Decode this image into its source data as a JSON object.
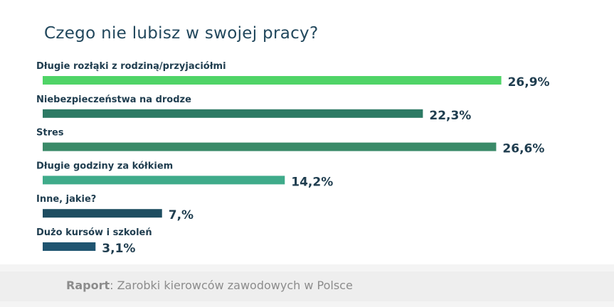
{
  "chart_data": {
    "type": "bar",
    "orientation": "horizontal",
    "title": "Czego nie lubisz w swojej pracy?",
    "categories": [
      "Długie rozłąki z rodziną/przyjaciółmi",
      "Niebezpieczeństwa na drodze",
      "Stres",
      "Długie godziny za kółkiem",
      "Inne, jakie?",
      "Dużo kursów i szkoleń"
    ],
    "values": [
      26.9,
      22.3,
      26.6,
      14.2,
      7,
      3.1
    ],
    "value_labels": [
      "26,9%",
      "22,3%",
      "26,6%",
      "14,2%",
      "7,%",
      "3,1%"
    ],
    "colors": [
      "#4fd467",
      "#2d7a64",
      "#3a8a68",
      "#3fab8a",
      "#1e4d61",
      "#1f5470"
    ],
    "xlim": [
      0,
      27
    ],
    "grid": false,
    "legend": "none"
  },
  "footer": {
    "source_bold": "Raport",
    "source_text": ": Zarobki kierowców zawodowych w Polsce"
  }
}
